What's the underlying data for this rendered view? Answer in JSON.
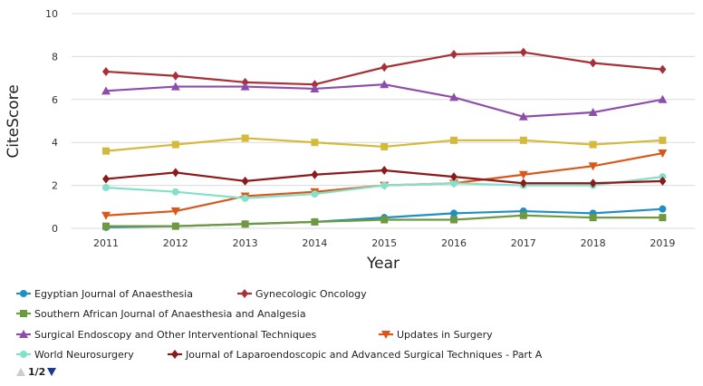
{
  "chart_data": {
    "type": "line",
    "xlabel": "Year",
    "ylabel": "CiteScore",
    "x": [
      2011,
      2012,
      2013,
      2014,
      2015,
      2016,
      2017,
      2018,
      2019
    ],
    "x_tick_labels": [
      "2011",
      "2012",
      "2013",
      "2014",
      "2015",
      "2016",
      "2017",
      "2018",
      "2019"
    ],
    "ylim": [
      0,
      10
    ],
    "y_ticks": [
      0,
      2,
      4,
      6,
      8,
      10
    ],
    "y_tick_labels": [
      "0",
      "2",
      "4",
      "6",
      "8",
      "10"
    ],
    "grid": true,
    "legend_position": "bottom",
    "series": [
      {
        "name": "Egyptian Journal of Anaesthesia",
        "color": "#1f8fc4",
        "marker": "circle",
        "values": [
          0.05,
          0.1,
          0.2,
          0.3,
          0.5,
          0.7,
          0.8,
          0.7,
          0.9
        ]
      },
      {
        "name": "Gynecologic Oncology",
        "color": "#a83038",
        "marker": "diamond",
        "values": [
          7.3,
          7.1,
          6.8,
          6.7,
          7.5,
          8.1,
          8.2,
          7.7,
          7.4
        ]
      },
      {
        "name": "Southern African Journal of Anaesthesia and Analgesia",
        "color": "#6f9940",
        "marker": "square",
        "values": [
          0.1,
          0.1,
          0.2,
          0.3,
          0.4,
          0.4,
          0.6,
          0.5,
          0.5
        ]
      },
      {
        "name": "Surgical Endoscopy and Other Interventional Techniques",
        "color": "#8e4cab",
        "marker": "triangle-up",
        "values": [
          6.4,
          6.6,
          6.6,
          6.5,
          6.7,
          6.1,
          5.2,
          5.4,
          6.0
        ]
      },
      {
        "name": "Updates in Surgery",
        "color": "#d8581c",
        "marker": "triangle-down",
        "values": [
          0.6,
          0.8,
          1.5,
          1.7,
          2.0,
          2.1,
          2.5,
          2.9,
          3.5
        ]
      },
      {
        "name": "World Neurosurgery",
        "color": "#85e0c9",
        "marker": "circle",
        "values": [
          1.9,
          1.7,
          1.4,
          1.6,
          2.0,
          2.1,
          2.0,
          2.0,
          2.4
        ]
      },
      {
        "name": "Journal of Laparoendoscopic and Advanced Surgical Techniques - Part A",
        "color": "#8c1a1a",
        "marker": "diamond",
        "values": [
          2.3,
          2.6,
          2.2,
          2.5,
          2.7,
          2.4,
          2.1,
          2.1,
          2.2
        ]
      },
      {
        "name": "",
        "color": "#d4b93a",
        "marker": "square",
        "in_legend": false,
        "values": [
          3.6,
          3.9,
          4.2,
          4.0,
          3.8,
          4.1,
          4.1,
          3.9,
          4.1
        ]
      }
    ],
    "legend_pager": {
      "text": "1/2",
      "prev_color": "#cccccc",
      "next_color": "#1a3a8c"
    }
  }
}
